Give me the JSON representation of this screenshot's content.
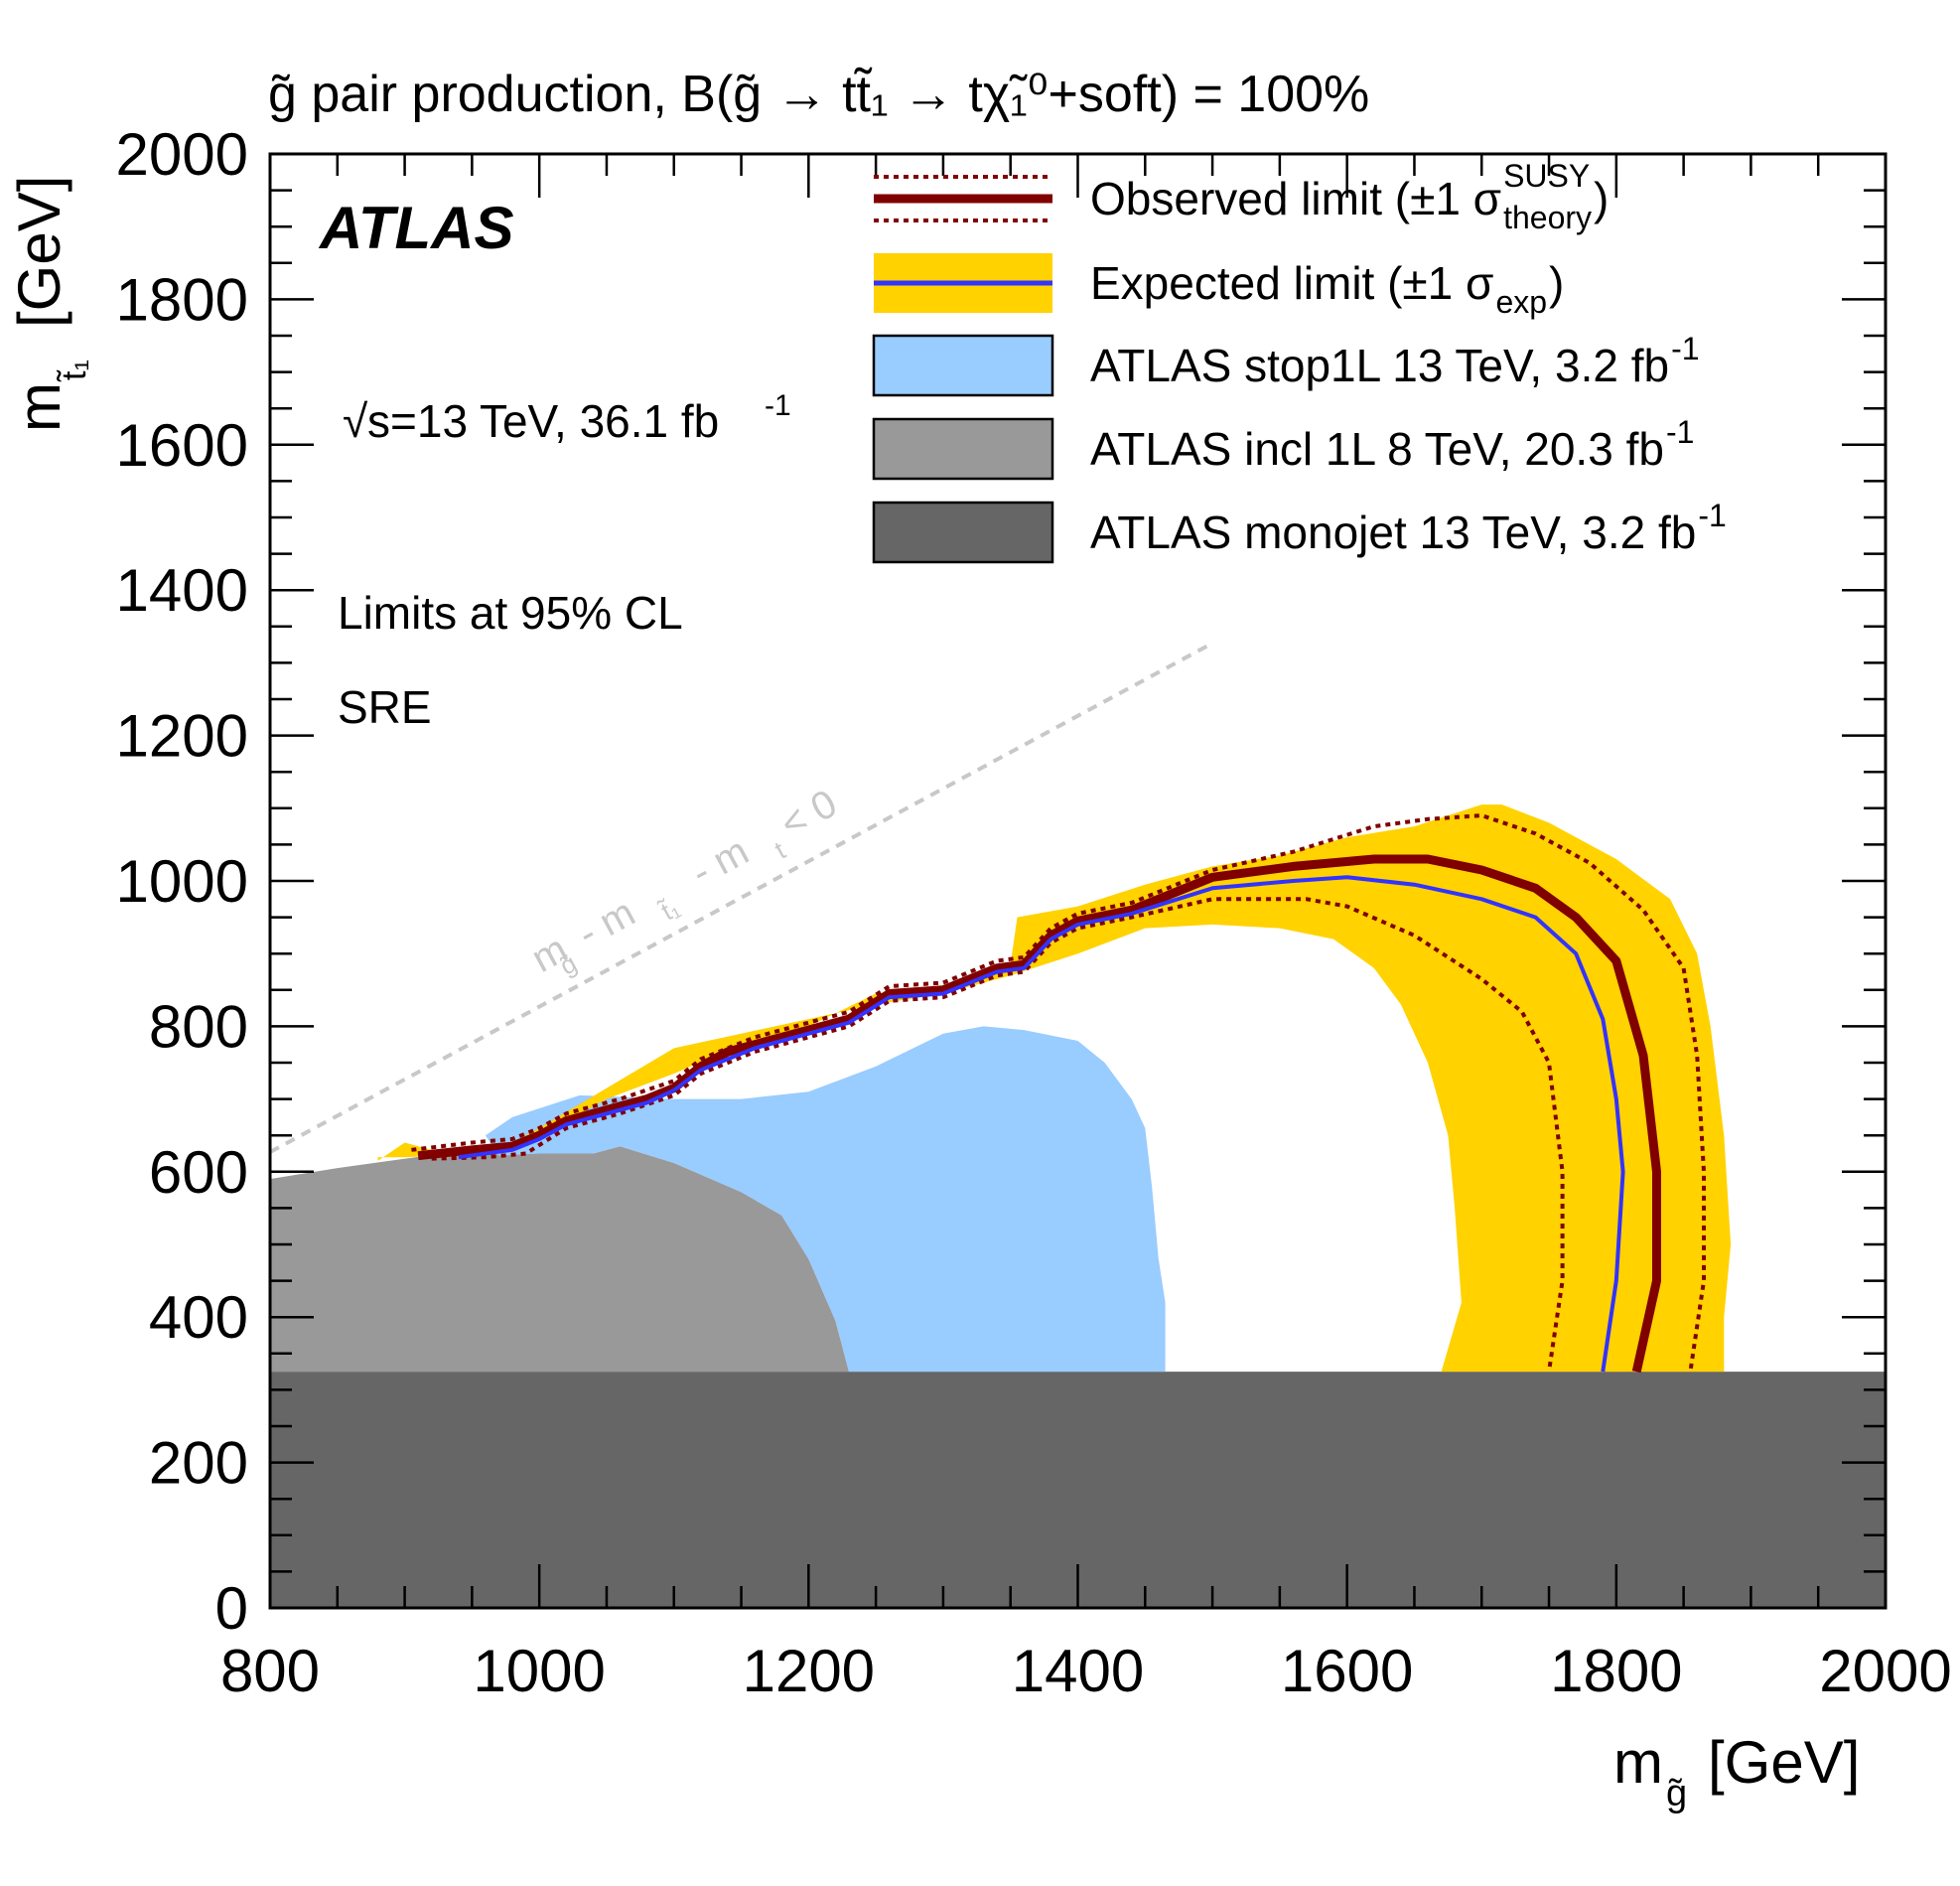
{
  "chart_data": {
    "type": "area",
    "title": "g̃ pair production, B(g̃ → tt̃₁ → tχ̃₁⁰+soft) = 100%",
    "experiment": "ATLAS",
    "energy_label": "√s=13 TeV, 36.1 fb⁻¹",
    "energy_label_main": "s=13 TeV, 36.1 fb",
    "energy_label_sup": "-1",
    "cl_label": "Limits at 95% CL",
    "region_label": "SRE",
    "xlabel": "m_g̃ [GeV]",
    "xlabel_main": "m",
    "xlabel_sub": "g̃",
    "xlabel_unit": "[GeV]",
    "ylabel": "m_t̃₁ [GeV]",
    "ylabel_main": "m",
    "ylabel_sub": "t̃₁",
    "ylabel_unit": "[GeV]",
    "xlim": [
      800,
      2000
    ],
    "ylim": [
      0,
      2000
    ],
    "x_ticks": [
      800,
      1000,
      1200,
      1400,
      1600,
      1800,
      2000
    ],
    "y_ticks": [
      0,
      200,
      400,
      600,
      800,
      1000,
      1200,
      1400,
      1600,
      1800,
      2000
    ],
    "x_tick_labels": [
      "800",
      "1000",
      "1200",
      "1400",
      "1600",
      "1800",
      "2000"
    ],
    "y_tick_labels": [
      "0",
      "200",
      "400",
      "600",
      "800",
      "1000",
      "1200",
      "1400",
      "1600",
      "1800",
      "2000"
    ],
    "diagonal_line": {
      "label": "m_g̃ - m_t̃₁ - m_t < 0",
      "label_parts": [
        "m",
        "g̃",
        " - m",
        "t̃₁",
        " - m",
        "t",
        " < 0"
      ],
      "points": [
        [
          800,
          627
        ],
        [
          1500,
          1327
        ]
      ],
      "color": "#c8c8c8"
    },
    "legend": [
      {
        "label": "Observed limit (±1 σ",
        "sup": "SUSY",
        "sub": "theory",
        "close": ")",
        "style": "observed"
      },
      {
        "label": "Expected limit (±1 σ",
        "sub": "exp",
        "close": ")",
        "style": "expected"
      },
      {
        "label": "ATLAS stop1L 13 TeV, 3.2 fb",
        "sup": "-1",
        "style": "lightblue"
      },
      {
        "label": "ATLAS incl 1L 8 TeV, 20.3 fb",
        "sup": "-1",
        "style": "gray"
      },
      {
        "label": "ATLAS monojet 13 TeV, 3.2 fb",
        "sup": "-1",
        "style": "darkgray"
      }
    ],
    "colors": {
      "observed": "#800000",
      "expected": "#3333ff",
      "band": "#ffd200",
      "lightblue": "#99ccff",
      "gray": "#999999",
      "darkgray": "#666666"
    },
    "series": [
      {
        "name": "ATLAS monojet 13 TeV, 3.2 fb-1",
        "kind": "region",
        "polygon": [
          [
            800,
            0
          ],
          [
            2000,
            0
          ],
          [
            2000,
            325
          ],
          [
            800,
            325
          ]
        ]
      },
      {
        "name": "ATLAS incl 1L 8 TeV, 20.3 fb-1",
        "kind": "region",
        "polygon": [
          [
            800,
            325
          ],
          [
            800,
            590
          ],
          [
            850,
            605
          ],
          [
            920,
            623
          ],
          [
            1000,
            625
          ],
          [
            1040,
            625
          ],
          [
            1060,
            635
          ],
          [
            1100,
            612
          ],
          [
            1150,
            572
          ],
          [
            1180,
            540
          ],
          [
            1200,
            480
          ],
          [
            1220,
            395
          ],
          [
            1230,
            325
          ]
        ]
      },
      {
        "name": "ATLAS stop1L 13 TeV, 3.2 fb-1",
        "kind": "region",
        "polygon": [
          [
            1230,
            325
          ],
          [
            1220,
            395
          ],
          [
            1200,
            480
          ],
          [
            1180,
            540
          ],
          [
            1150,
            572
          ],
          [
            1100,
            612
          ],
          [
            1060,
            635
          ],
          [
            1040,
            625
          ],
          [
            1000,
            625
          ],
          [
            970,
            622
          ],
          [
            960,
            650
          ],
          [
            980,
            675
          ],
          [
            1030,
            705
          ],
          [
            1100,
            700
          ],
          [
            1150,
            700
          ],
          [
            1200,
            710
          ],
          [
            1250,
            745
          ],
          [
            1300,
            790
          ],
          [
            1330,
            800
          ],
          [
            1360,
            795
          ],
          [
            1400,
            780
          ],
          [
            1420,
            750
          ],
          [
            1440,
            700
          ],
          [
            1450,
            660
          ],
          [
            1455,
            580
          ],
          [
            1460,
            480
          ],
          [
            1465,
            420
          ],
          [
            1465,
            325
          ]
        ]
      },
      {
        "name": "Expected limit band (±1 σ_exp)",
        "kind": "band",
        "polygon": [
          [
            880,
            615
          ],
          [
            900,
            640
          ],
          [
            930,
            625
          ],
          [
            960,
            630
          ],
          [
            1000,
            650
          ],
          [
            1050,
            700
          ],
          [
            1100,
            735
          ],
          [
            1150,
            775
          ],
          [
            1200,
            800
          ],
          [
            1250,
            845
          ],
          [
            1300,
            855
          ],
          [
            1350,
            885
          ],
          [
            1355,
            950
          ],
          [
            1400,
            965
          ],
          [
            1450,
            995
          ],
          [
            1500,
            1020
          ],
          [
            1550,
            1035
          ],
          [
            1600,
            1060
          ],
          [
            1650,
            1075
          ],
          [
            1700,
            1105
          ],
          [
            1715,
            1105
          ],
          [
            1750,
            1080
          ],
          [
            1800,
            1030
          ],
          [
            1840,
            975
          ],
          [
            1860,
            900
          ],
          [
            1870,
            800
          ],
          [
            1880,
            650
          ],
          [
            1885,
            500
          ],
          [
            1880,
            400
          ],
          [
            1880,
            325
          ],
          [
            1670,
            325
          ],
          [
            1685,
            420
          ],
          [
            1680,
            550
          ],
          [
            1675,
            650
          ],
          [
            1660,
            750
          ],
          [
            1640,
            830
          ],
          [
            1620,
            880
          ],
          [
            1590,
            920
          ],
          [
            1550,
            935
          ],
          [
            1500,
            940
          ],
          [
            1450,
            935
          ],
          [
            1400,
            900
          ],
          [
            1350,
            870
          ],
          [
            1300,
            845
          ],
          [
            1250,
            830
          ],
          [
            1200,
            810
          ],
          [
            1150,
            790
          ],
          [
            1100,
            770
          ],
          [
            1050,
            715
          ],
          [
            1000,
            660
          ],
          [
            980,
            640
          ],
          [
            960,
            625
          ],
          [
            900,
            620
          ],
          [
            880,
            620
          ]
        ]
      },
      {
        "name": "Observed limit",
        "kind": "line",
        "style": "observed-central",
        "points": [
          [
            910,
            622
          ],
          [
            950,
            630
          ],
          [
            980,
            635
          ],
          [
            1000,
            650
          ],
          [
            1020,
            670
          ],
          [
            1040,
            680
          ],
          [
            1060,
            690
          ],
          [
            1080,
            700
          ],
          [
            1100,
            715
          ],
          [
            1120,
            745
          ],
          [
            1140,
            765
          ],
          [
            1160,
            775
          ],
          [
            1200,
            795
          ],
          [
            1230,
            810
          ],
          [
            1260,
            845
          ],
          [
            1300,
            850
          ],
          [
            1340,
            880
          ],
          [
            1360,
            885
          ],
          [
            1380,
            925
          ],
          [
            1400,
            945
          ],
          [
            1440,
            960
          ],
          [
            1500,
            1005
          ],
          [
            1560,
            1020
          ],
          [
            1620,
            1030
          ],
          [
            1660,
            1030
          ],
          [
            1700,
            1015
          ],
          [
            1740,
            990
          ],
          [
            1770,
            950
          ],
          [
            1800,
            890
          ],
          [
            1820,
            760
          ],
          [
            1830,
            600
          ],
          [
            1830,
            450
          ],
          [
            1815,
            325
          ]
        ]
      },
      {
        "name": "Observed limit +1σ theory",
        "kind": "line",
        "style": "observed-dotted",
        "points": [
          [
            905,
            630
          ],
          [
            950,
            640
          ],
          [
            980,
            645
          ],
          [
            1000,
            660
          ],
          [
            1020,
            680
          ],
          [
            1060,
            700
          ],
          [
            1100,
            725
          ],
          [
            1120,
            755
          ],
          [
            1160,
            785
          ],
          [
            1200,
            805
          ],
          [
            1230,
            820
          ],
          [
            1260,
            855
          ],
          [
            1300,
            860
          ],
          [
            1340,
            890
          ],
          [
            1360,
            895
          ],
          [
            1380,
            935
          ],
          [
            1400,
            955
          ],
          [
            1440,
            970
          ],
          [
            1500,
            1015
          ],
          [
            1560,
            1040
          ],
          [
            1620,
            1075
          ],
          [
            1660,
            1085
          ],
          [
            1700,
            1090
          ],
          [
            1740,
            1065
          ],
          [
            1780,
            1025
          ],
          [
            1820,
            960
          ],
          [
            1850,
            880
          ],
          [
            1860,
            760
          ],
          [
            1865,
            600
          ],
          [
            1865,
            450
          ],
          [
            1855,
            325
          ]
        ]
      },
      {
        "name": "Observed limit -1σ theory",
        "kind": "line",
        "style": "observed-dotted",
        "points": [
          [
            920,
            618
          ],
          [
            960,
            620
          ],
          [
            990,
            625
          ],
          [
            1020,
            660
          ],
          [
            1060,
            680
          ],
          [
            1100,
            705
          ],
          [
            1120,
            735
          ],
          [
            1160,
            765
          ],
          [
            1200,
            785
          ],
          [
            1230,
            800
          ],
          [
            1260,
            835
          ],
          [
            1300,
            840
          ],
          [
            1340,
            870
          ],
          [
            1360,
            875
          ],
          [
            1380,
            915
          ],
          [
            1400,
            935
          ],
          [
            1440,
            950
          ],
          [
            1500,
            975
          ],
          [
            1550,
            975
          ],
          [
            1570,
            975
          ],
          [
            1600,
            965
          ],
          [
            1650,
            925
          ],
          [
            1700,
            865
          ],
          [
            1730,
            820
          ],
          [
            1750,
            750
          ],
          [
            1760,
            600
          ],
          [
            1760,
            450
          ],
          [
            1750,
            325
          ]
        ]
      },
      {
        "name": "Expected limit",
        "kind": "line",
        "style": "expected-central",
        "points": [
          [
            940,
            620
          ],
          [
            980,
            630
          ],
          [
            1000,
            645
          ],
          [
            1020,
            665
          ],
          [
            1040,
            675
          ],
          [
            1080,
            695
          ],
          [
            1100,
            712
          ],
          [
            1120,
            740
          ],
          [
            1160,
            770
          ],
          [
            1200,
            790
          ],
          [
            1230,
            805
          ],
          [
            1260,
            840
          ],
          [
            1300,
            845
          ],
          [
            1340,
            875
          ],
          [
            1360,
            880
          ],
          [
            1380,
            920
          ],
          [
            1400,
            940
          ],
          [
            1440,
            955
          ],
          [
            1500,
            990
          ],
          [
            1560,
            1000
          ],
          [
            1600,
            1005
          ],
          [
            1650,
            995
          ],
          [
            1700,
            975
          ],
          [
            1740,
            950
          ],
          [
            1770,
            900
          ],
          [
            1790,
            810
          ],
          [
            1800,
            700
          ],
          [
            1805,
            600
          ],
          [
            1800,
            450
          ],
          [
            1790,
            325
          ]
        ]
      }
    ]
  }
}
